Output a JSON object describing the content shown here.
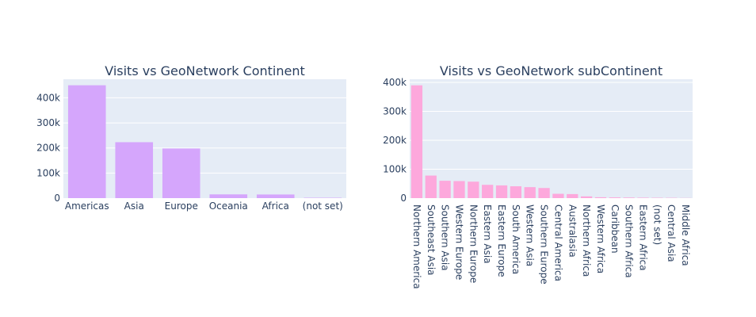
{
  "chart_data": [
    {
      "type": "bar",
      "title": "Visits vs GeoNetwork Continent",
      "categories": [
        "Americas",
        "Asia",
        "Europe",
        "Oceania",
        "Africa",
        "(not set)"
      ],
      "values": [
        450000,
        223000,
        198000,
        15000,
        14500,
        1500
      ],
      "ylim": [
        0,
        474000
      ],
      "yticks": [
        0,
        100000,
        200000,
        300000,
        400000
      ],
      "ytick_labels": [
        "0",
        "100k",
        "200k",
        "300k",
        "400k"
      ],
      "bar_color": "#d5a6fc",
      "grid": true
    },
    {
      "type": "bar",
      "title": "Visits vs GeoNetwork subContinent",
      "categories": [
        "Northern America",
        "Southeast Asia",
        "Southern Asia",
        "Western Europe",
        "Northern Europe",
        "Eastern Asia",
        "Eastern Europe",
        "South America",
        "Western Asia",
        "Southern Europe",
        "Central America",
        "Australasia",
        "Northern Africa",
        "Western Africa",
        "Caribbean",
        "Southern Africa",
        "Eastern Africa",
        "(not set)",
        "Central Asia",
        "Middle Africa"
      ],
      "values": [
        390000,
        78000,
        60000,
        59000,
        57000,
        46000,
        44000,
        41000,
        38000,
        35000,
        15000,
        14000,
        6000,
        3000,
        2500,
        2000,
        1500,
        1200,
        1000,
        500
      ],
      "ylim": [
        0,
        411000
      ],
      "yticks": [
        0,
        100000,
        200000,
        300000,
        400000
      ],
      "ytick_labels": [
        "0",
        "100k",
        "200k",
        "300k",
        "400k"
      ],
      "bar_color": "#fda8dc",
      "grid": true
    }
  ],
  "colors": {
    "plot_bg": "#e5ecf6",
    "grid": "#ffffff",
    "text": "#2a3f5f"
  }
}
